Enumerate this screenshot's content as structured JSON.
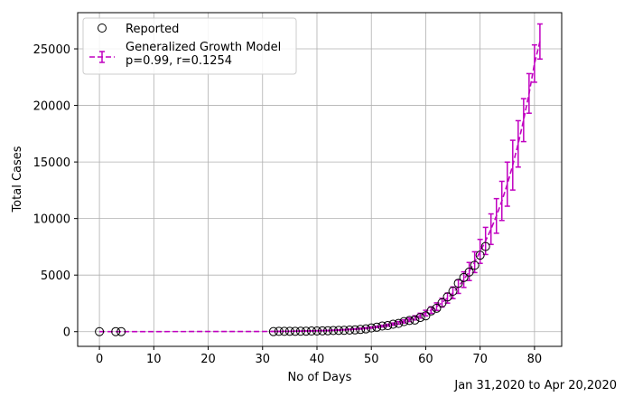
{
  "chart_data": {
    "type": "scatter",
    "xlabel": "No of Days",
    "ylabel": "Total Cases",
    "footnote": "Jan 31,2020 to Apr 20,2020",
    "xlim": [
      -4,
      85
    ],
    "ylim": [
      -1300,
      28200
    ],
    "xticks": [
      0,
      10,
      20,
      30,
      40,
      50,
      60,
      70,
      80
    ],
    "yticks": [
      0,
      5000,
      10000,
      15000,
      20000,
      25000
    ],
    "grid": true,
    "legend_position": "top-left",
    "series": [
      {
        "name": "Reported",
        "kind": "markers",
        "marker": "open-circle",
        "color": "#000000",
        "x": [
          0,
          3,
          4,
          32,
          33,
          34,
          35,
          36,
          37,
          38,
          39,
          40,
          41,
          42,
          43,
          44,
          45,
          46,
          47,
          48,
          49,
          50,
          51,
          52,
          53,
          54,
          55,
          56,
          57,
          58,
          59,
          60,
          61,
          62,
          63,
          64,
          65,
          66,
          67,
          68,
          69,
          70,
          71
        ],
        "y": [
          1,
          2,
          3,
          5,
          28,
          30,
          31,
          34,
          39,
          43,
          56,
          62,
          73,
          82,
          102,
          113,
          119,
          142,
          156,
          194,
          244,
          330,
          396,
          499,
          536,
          657,
          727,
          887,
          987,
          1024,
          1251,
          1397,
          1834,
          2069,
          2547,
          3072,
          3577,
          4281,
          4789,
          5274,
          5865,
          6761,
          7529
        ]
      },
      {
        "name": "Generalized Growth Model\np=0.99, r=0.1254",
        "kind": "errorbar-dashed",
        "color": "#c000c0",
        "x": [
          0,
          3,
          4,
          32,
          33,
          34,
          35,
          36,
          37,
          38,
          39,
          40,
          41,
          42,
          43,
          44,
          45,
          46,
          47,
          48,
          49,
          50,
          51,
          52,
          53,
          54,
          55,
          56,
          57,
          58,
          59,
          60,
          61,
          62,
          63,
          64,
          65,
          66,
          67,
          68,
          69,
          70,
          71,
          72,
          73,
          74,
          75,
          76,
          77,
          78,
          79,
          80,
          81
        ],
        "y": [
          1,
          2,
          2,
          22,
          26,
          31,
          36,
          42,
          50,
          58,
          67,
          77,
          89,
          104,
          122,
          143,
          166,
          194,
          225,
          264,
          308,
          360,
          420,
          490,
          571,
          665,
          774,
          900,
          1048,
          1219,
          1415,
          1643,
          1907,
          2212,
          2563,
          2969,
          3436,
          3976,
          4598,
          5316,
          6142,
          7097,
          8020,
          9060,
          10230,
          11560,
          13040,
          14720,
          16600,
          18700,
          21060,
          23700,
          25650
        ],
        "err": [
          0,
          0,
          0,
          3,
          4,
          5,
          5,
          6,
          8,
          9,
          10,
          12,
          14,
          16,
          19,
          22,
          26,
          30,
          35,
          40,
          47,
          55,
          64,
          75,
          87,
          100,
          116,
          135,
          157,
          183,
          212,
          246,
          286,
          332,
          384,
          445,
          515,
          596,
          690,
          798,
          920,
          1060,
          1200,
          1350,
          1530,
          1730,
          1950,
          2200,
          2050,
          1900,
          1750,
          1650,
          1550
        ]
      }
    ]
  }
}
